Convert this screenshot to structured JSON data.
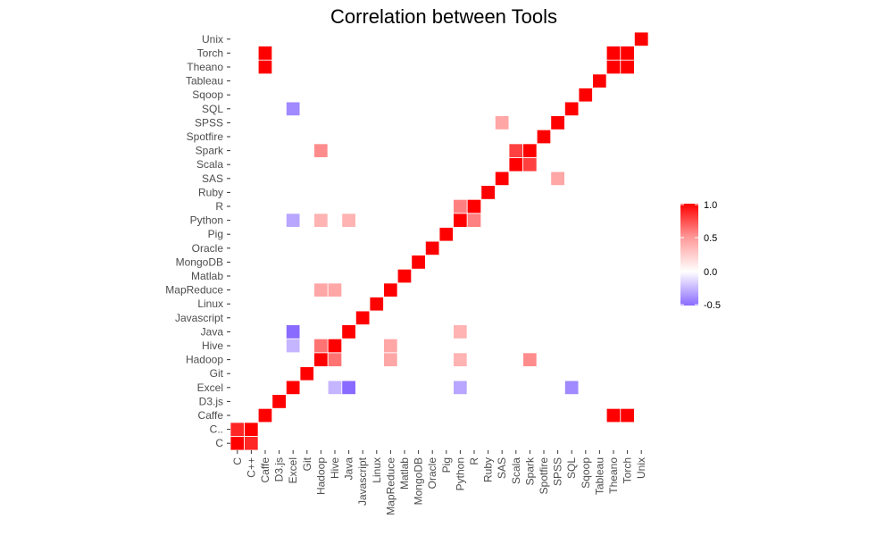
{
  "chart_data": {
    "type": "heatmap",
    "title": "Correlation between Tools",
    "xlabel": "",
    "ylabel": "",
    "categories": [
      "C",
      "C..",
      "Caffe",
      "D3.js",
      "Excel",
      "Git",
      "Hadoop",
      "Hive",
      "Java",
      "Javascript",
      "Linux",
      "MapReduce",
      "Matlab",
      "MongoDB",
      "Oracle",
      "Pig",
      "Python",
      "R",
      "Ruby",
      "SAS",
      "Scala",
      "Spark",
      "Spotfire",
      "SPSS",
      "SQL",
      "Sqoop",
      "Tableau",
      "Theano",
      "Torch",
      "Unix"
    ],
    "x_tick_labels": [
      "C",
      "C++",
      "Caffe",
      "D3.js",
      "Excel",
      "Git",
      "Hadoop",
      "Hive",
      "Java",
      "Javascript",
      "Linux",
      "MapReduce",
      "Matlab",
      "MongoDB",
      "Oracle",
      "Pig",
      "Python",
      "R",
      "Ruby",
      "SAS",
      "Scala",
      "Spark",
      "Spotfire",
      "SPSS",
      "SQL",
      "Sqoop",
      "Tableau",
      "Theano",
      "Torch",
      "Unix"
    ],
    "y_tick_labels": [
      "C",
      "C..",
      "Caffe",
      "D3.js",
      "Excel",
      "Git",
      "Hadoop",
      "Hive",
      "Java",
      "Javascript",
      "Linux",
      "MapReduce",
      "Matlab",
      "MongoDB",
      "Oracle",
      "Pig",
      "Python",
      "R",
      "Ruby",
      "SAS",
      "Scala",
      "Spark",
      "Spotfire",
      "SPSS",
      "SQL",
      "Sqoop",
      "Tableau",
      "Theano",
      "Torch",
      "Unix"
    ],
    "strong_pairs": [
      {
        "a": "C",
        "b": "C..",
        "value": 0.85
      },
      {
        "a": "Caffe",
        "b": "Theano",
        "value": 1.0
      },
      {
        "a": "Caffe",
        "b": "Torch",
        "value": 1.0
      },
      {
        "a": "Theano",
        "b": "Torch",
        "value": 1.0
      },
      {
        "a": "Hadoop",
        "b": "Hive",
        "value": 0.55
      },
      {
        "a": "Hadoop",
        "b": "Spark",
        "value": 0.45
      },
      {
        "a": "Scala",
        "b": "Spark",
        "value": 0.75
      },
      {
        "a": "Python",
        "b": "R",
        "value": 0.5
      },
      {
        "a": "Hive",
        "b": "MapReduce",
        "value": 0.35
      },
      {
        "a": "Hadoop",
        "b": "MapReduce",
        "value": 0.35
      },
      {
        "a": "SAS",
        "b": "SPSS",
        "value": 0.35
      },
      {
        "a": "Hadoop",
        "b": "Python",
        "value": 0.3
      },
      {
        "a": "Java",
        "b": "Python",
        "value": 0.3
      },
      {
        "a": "Java",
        "b": "Excel",
        "value": -0.5
      },
      {
        "a": "Excel",
        "b": "SQL",
        "value": -0.4
      },
      {
        "a": "Excel",
        "b": "Python",
        "value": -0.3
      },
      {
        "a": "Excel",
        "b": "Hive",
        "value": -0.25
      }
    ],
    "default_value": 0.0,
    "color_scale": {
      "low": "#8a6bff",
      "mid": "#ffffff",
      "high": "#ff0000",
      "min": -0.5,
      "max": 1.0
    },
    "legend": {
      "position": "right",
      "ticks": [
        "1.0",
        "0.5",
        "0.0",
        "-0.5"
      ],
      "tick_values": [
        1.0,
        0.5,
        0.0,
        -0.5
      ]
    },
    "grid": false
  }
}
